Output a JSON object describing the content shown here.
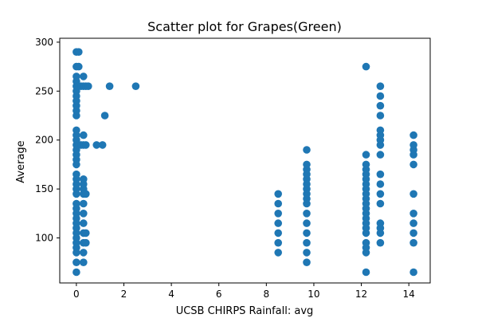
{
  "chart_data": {
    "type": "scatter",
    "title": "Scatter plot for Grapes(Green)",
    "xlabel": "UCSB CHIRPS Rainfall: avg",
    "ylabel": "Average",
    "xlim": [
      -0.7,
      14.9
    ],
    "ylim": [
      54,
      304
    ],
    "xticks": [
      0,
      2,
      4,
      6,
      8,
      10,
      12,
      14
    ],
    "yticks": [
      100,
      150,
      200,
      250,
      300
    ],
    "grid": false,
    "marker_color": "#1f77b4",
    "points": [
      [
        0,
        65
      ],
      [
        0,
        75
      ],
      [
        0,
        85
      ],
      [
        0,
        90
      ],
      [
        0,
        95
      ],
      [
        0,
        100
      ],
      [
        0,
        105
      ],
      [
        0,
        110
      ],
      [
        0,
        115
      ],
      [
        0,
        120
      ],
      [
        0,
        125
      ],
      [
        0,
        130
      ],
      [
        0,
        135
      ],
      [
        0,
        145
      ],
      [
        0,
        150
      ],
      [
        0,
        155
      ],
      [
        0,
        160
      ],
      [
        0,
        165
      ],
      [
        0,
        175
      ],
      [
        0,
        180
      ],
      [
        0,
        185
      ],
      [
        0,
        190
      ],
      [
        0,
        195
      ],
      [
        0,
        200
      ],
      [
        0,
        205
      ],
      [
        0,
        210
      ],
      [
        0,
        225
      ],
      [
        0,
        230
      ],
      [
        0,
        235
      ],
      [
        0,
        240
      ],
      [
        0,
        245
      ],
      [
        0,
        250
      ],
      [
        0,
        255
      ],
      [
        0,
        260
      ],
      [
        0,
        265
      ],
      [
        0,
        275
      ],
      [
        0,
        290
      ],
      [
        0.1,
        195
      ],
      [
        0.1,
        255
      ],
      [
        0.1,
        275
      ],
      [
        0.1,
        290
      ],
      [
        0.2,
        195
      ],
      [
        0.2,
        255
      ],
      [
        0.3,
        75
      ],
      [
        0.3,
        85
      ],
      [
        0.3,
        95
      ],
      [
        0.3,
        105
      ],
      [
        0.3,
        115
      ],
      [
        0.3,
        125
      ],
      [
        0.3,
        135
      ],
      [
        0.3,
        145
      ],
      [
        0.3,
        150
      ],
      [
        0.3,
        155
      ],
      [
        0.3,
        160
      ],
      [
        0.3,
        195
      ],
      [
        0.3,
        205
      ],
      [
        0.3,
        255
      ],
      [
        0.3,
        265
      ],
      [
        0.4,
        95
      ],
      [
        0.4,
        105
      ],
      [
        0.4,
        145
      ],
      [
        0.4,
        195
      ],
      [
        0.4,
        255
      ],
      [
        0.5,
        255
      ],
      [
        0.85,
        195
      ],
      [
        1.1,
        195
      ],
      [
        1.2,
        225
      ],
      [
        1.4,
        255
      ],
      [
        2.5,
        255
      ],
      [
        8.5,
        85
      ],
      [
        8.5,
        95
      ],
      [
        8.5,
        105
      ],
      [
        8.5,
        115
      ],
      [
        8.5,
        125
      ],
      [
        8.5,
        135
      ],
      [
        8.5,
        145
      ],
      [
        9.7,
        75
      ],
      [
        9.7,
        85
      ],
      [
        9.7,
        95
      ],
      [
        9.7,
        105
      ],
      [
        9.7,
        115
      ],
      [
        9.7,
        125
      ],
      [
        9.7,
        135
      ],
      [
        9.7,
        140
      ],
      [
        9.7,
        145
      ],
      [
        9.7,
        150
      ],
      [
        9.7,
        155
      ],
      [
        9.7,
        160
      ],
      [
        9.7,
        165
      ],
      [
        9.7,
        170
      ],
      [
        9.7,
        175
      ],
      [
        9.7,
        190
      ],
      [
        12.2,
        65
      ],
      [
        12.2,
        85
      ],
      [
        12.2,
        90
      ],
      [
        12.2,
        95
      ],
      [
        12.2,
        105
      ],
      [
        12.2,
        110
      ],
      [
        12.2,
        115
      ],
      [
        12.2,
        120
      ],
      [
        12.2,
        125
      ],
      [
        12.2,
        130
      ],
      [
        12.2,
        135
      ],
      [
        12.2,
        140
      ],
      [
        12.2,
        145
      ],
      [
        12.2,
        150
      ],
      [
        12.2,
        155
      ],
      [
        12.2,
        160
      ],
      [
        12.2,
        165
      ],
      [
        12.2,
        170
      ],
      [
        12.2,
        175
      ],
      [
        12.2,
        185
      ],
      [
        12.2,
        275
      ],
      [
        12.8,
        95
      ],
      [
        12.8,
        105
      ],
      [
        12.8,
        110
      ],
      [
        12.8,
        115
      ],
      [
        12.8,
        135
      ],
      [
        12.8,
        145
      ],
      [
        12.8,
        155
      ],
      [
        12.8,
        165
      ],
      [
        12.8,
        185
      ],
      [
        12.8,
        195
      ],
      [
        12.8,
        200
      ],
      [
        12.8,
        205
      ],
      [
        12.8,
        210
      ],
      [
        12.8,
        225
      ],
      [
        12.8,
        235
      ],
      [
        12.8,
        245
      ],
      [
        12.8,
        255
      ],
      [
        14.2,
        65
      ],
      [
        14.2,
        95
      ],
      [
        14.2,
        105
      ],
      [
        14.2,
        115
      ],
      [
        14.2,
        125
      ],
      [
        14.2,
        145
      ],
      [
        14.2,
        175
      ],
      [
        14.2,
        185
      ],
      [
        14.2,
        190
      ],
      [
        14.2,
        195
      ],
      [
        14.2,
        205
      ]
    ]
  }
}
